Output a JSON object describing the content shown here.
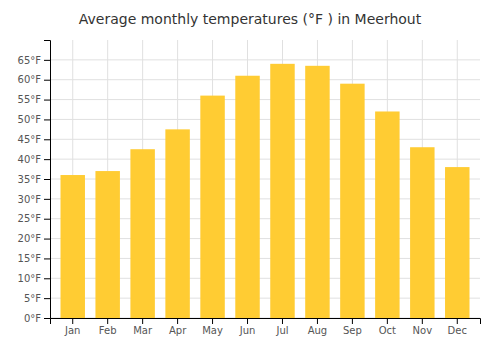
{
  "chart_data": {
    "type": "bar",
    "title": "Average monthly temperatures (°F ) in Meerhout",
    "categories": [
      "Jan",
      "Feb",
      "Mar",
      "Apr",
      "May",
      "Jun",
      "Jul",
      "Aug",
      "Sep",
      "Oct",
      "Nov",
      "Dec"
    ],
    "values": [
      36,
      37,
      42.5,
      47.5,
      56,
      61,
      64,
      63.5,
      59,
      52,
      43,
      38
    ],
    "color": "#FFCC33",
    "ylim": [
      0,
      70
    ],
    "yticks": [
      {
        "value": 0,
        "label": "0°F"
      },
      {
        "value": 5,
        "label": "5°F"
      },
      {
        "value": 10,
        "label": "10°F"
      },
      {
        "value": 15,
        "label": "15°F"
      },
      {
        "value": 20,
        "label": "20°F"
      },
      {
        "value": 25,
        "label": "25°F"
      },
      {
        "value": 30,
        "label": "30°F"
      },
      {
        "value": 35,
        "label": "35°F"
      },
      {
        "value": 40,
        "label": "40°F"
      },
      {
        "value": 45,
        "label": "45°F"
      },
      {
        "value": 50,
        "label": "50°F"
      },
      {
        "value": 55,
        "label": "55°F"
      },
      {
        "value": 60,
        "label": "60°F"
      },
      {
        "value": 65,
        "label": "65°F"
      }
    ],
    "grid": true
  }
}
